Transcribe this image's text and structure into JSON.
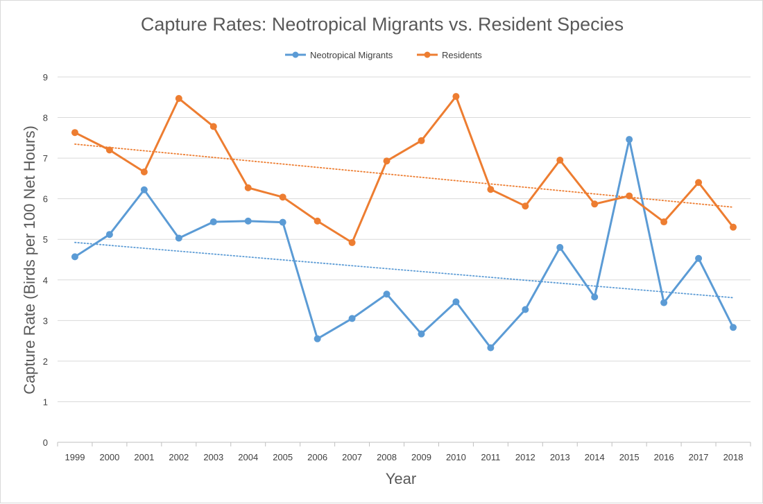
{
  "chart_data": {
    "type": "line",
    "title": "Capture Rates: Neotropical Migrants vs. Resident Species",
    "xlabel": "Year",
    "ylabel": "Capture Rate (Birds per 100 Net Hours)",
    "categories": [
      "1999",
      "2000",
      "2001",
      "2002",
      "2003",
      "2004",
      "2005",
      "2006",
      "2007",
      "2008",
      "2009",
      "2010",
      "2011",
      "2012",
      "2013",
      "2014",
      "2015",
      "2016",
      "2017",
      "2018"
    ],
    "ylim": [
      0,
      9
    ],
    "yticks": [
      "0",
      "1",
      "2",
      "3",
      "4",
      "5",
      "6",
      "7",
      "8",
      "9"
    ],
    "grid": "horizontal",
    "legend_position": "top",
    "series": [
      {
        "name": "Neotropical Migrants",
        "color": "#5B9BD5",
        "values": [
          4.57,
          5.12,
          6.22,
          5.03,
          5.43,
          5.45,
          5.42,
          2.55,
          3.05,
          3.65,
          2.67,
          3.46,
          2.33,
          3.27,
          4.8,
          3.58,
          7.46,
          3.44,
          4.53,
          2.83
        ],
        "trendline": {
          "type": "linear",
          "style": "dotted"
        }
      },
      {
        "name": "Residents",
        "color": "#ED7D31",
        "values": [
          7.63,
          7.2,
          6.66,
          8.47,
          7.78,
          6.27,
          6.04,
          5.45,
          4.92,
          6.93,
          7.43,
          8.52,
          6.23,
          5.82,
          6.95,
          5.87,
          6.07,
          5.43,
          6.4,
          5.3
        ],
        "trendline": {
          "type": "linear",
          "style": "dotted"
        }
      }
    ]
  }
}
